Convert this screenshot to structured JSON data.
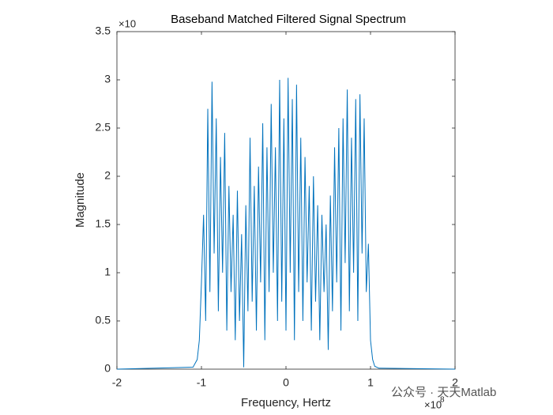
{
  "chart_data": {
    "type": "line",
    "title": "Baseband Matched Filtered Signal Spectrum",
    "x_label": "Frequency, Hertz",
    "y_label": "Magnitude",
    "x_multiplier": "×10",
    "x_exponent": "8",
    "y_multiplier": "×10",
    "watermark": "公众号 · 天天Matlab",
    "xlim": [
      -2,
      2
    ],
    "xticks": [
      -2,
      -1,
      0,
      1,
      2
    ],
    "ylim": [
      0,
      3.5
    ],
    "yticks": [
      0,
      0.5,
      1,
      1.5,
      2,
      2.5,
      3,
      3.5
    ],
    "grid": false,
    "x": [
      -2,
      -1.1,
      -1.05,
      -1.025,
      -1,
      -0.975,
      -0.95,
      -0.925,
      -0.9,
      -0.875,
      -0.85,
      -0.825,
      -0.8,
      -0.775,
      -0.75,
      -0.725,
      -0.7,
      -0.675,
      -0.65,
      -0.625,
      -0.6,
      -0.575,
      -0.55,
      -0.525,
      -0.5,
      -0.475,
      -0.45,
      -0.425,
      -0.4,
      -0.375,
      -0.35,
      -0.325,
      -0.3,
      -0.275,
      -0.25,
      -0.225,
      -0.2,
      -0.175,
      -0.15,
      -0.125,
      -0.1,
      -0.075,
      -0.05,
      -0.025,
      0,
      0.025,
      0.05,
      0.075,
      0.1,
      0.125,
      0.15,
      0.175,
      0.2,
      0.225,
      0.25,
      0.275,
      0.3,
      0.325,
      0.35,
      0.375,
      0.4,
      0.425,
      0.45,
      0.475,
      0.5,
      0.525,
      0.55,
      0.575,
      0.6,
      0.625,
      0.65,
      0.675,
      0.7,
      0.725,
      0.75,
      0.775,
      0.8,
      0.825,
      0.85,
      0.875,
      0.9,
      0.925,
      0.95,
      0.975,
      1,
      1.025,
      1.05,
      1.1,
      2
    ],
    "series": [
      {
        "color": "#0072bd",
        "values": [
          0,
          0.02,
          0.1,
          0.3,
          0.9,
          1.6,
          0.5,
          2.7,
          0.8,
          2.98,
          1.2,
          2.6,
          0.6,
          2.2,
          1.0,
          2.45,
          0.4,
          1.9,
          0.8,
          1.6,
          0.3,
          1.85,
          0.5,
          1.4,
          0.02,
          1.7,
          0.6,
          2.4,
          0.7,
          1.9,
          0.4,
          2.1,
          0.9,
          2.55,
          0.3,
          2.3,
          0.8,
          2.75,
          1.0,
          2.3,
          0.5,
          3.0,
          0.7,
          2.6,
          0.4,
          3.02,
          1.0,
          2.8,
          0.3,
          2.95,
          0.8,
          2.4,
          0.5,
          2.2,
          0.9,
          1.9,
          0.4,
          2.0,
          0.7,
          1.7,
          0.3,
          1.6,
          0.8,
          1.5,
          0.2,
          1.8,
          0.6,
          2.3,
          0.9,
          2.5,
          0.4,
          2.6,
          1.1,
          2.9,
          0.6,
          2.4,
          1.0,
          2.8,
          0.5,
          2.85,
          1.2,
          2.6,
          0.8,
          1.3,
          0.3,
          0.1,
          0.03,
          0.01,
          0
        ]
      }
    ]
  }
}
